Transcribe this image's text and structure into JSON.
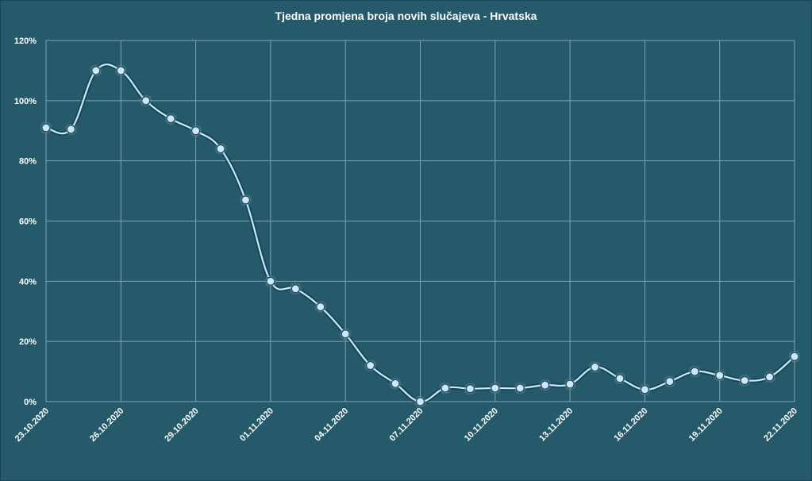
{
  "chart_data": {
    "type": "line",
    "title": "Tjedna promjena broja novih slučajeva - Hrvatska",
    "xlabel": "",
    "ylabel": "",
    "ylim": [
      0,
      120
    ],
    "yticks": [
      "0%",
      "20%",
      "40%",
      "60%",
      "80%",
      "100%",
      "120%"
    ],
    "grid": true,
    "x_tick_labels": [
      "23.10.2020",
      "26.10.2020",
      "29.10.2020",
      "01.11.2020",
      "04.11.2020",
      "07.11.2020",
      "10.11.2020",
      "13.11.2020",
      "16.11.2020",
      "19.11.2020",
      "22.11.2020"
    ],
    "x": [
      "23.10.2020",
      "24.10.2020",
      "25.10.2020",
      "26.10.2020",
      "27.10.2020",
      "28.10.2020",
      "29.10.2020",
      "30.10.2020",
      "31.10.2020",
      "01.11.2020",
      "02.11.2020",
      "03.11.2020",
      "04.11.2020",
      "05.11.2020",
      "06.11.2020",
      "07.11.2020",
      "08.11.2020",
      "09.11.2020",
      "10.11.2020",
      "11.11.2020",
      "12.11.2020",
      "13.11.2020",
      "14.11.2020",
      "15.11.2020",
      "16.11.2020",
      "17.11.2020",
      "18.11.2020",
      "19.11.2020",
      "20.11.2020",
      "21.11.2020",
      "22.11.2020"
    ],
    "series": [
      {
        "values": [
          91,
          90.5,
          110,
          110,
          100,
          94,
          90,
          84,
          67,
          40,
          37.5,
          31.5,
          22.5,
          12,
          6,
          0,
          4.5,
          4.3,
          4.5,
          4.5,
          5.5,
          5.8,
          11.5,
          7.7,
          4,
          6.7,
          10,
          8.7,
          7,
          8.2,
          15
        ]
      }
    ],
    "colors": {
      "background": "#245a6a",
      "line": "#cde8f7",
      "marker_fill": "#cde8f7",
      "marker_stroke": "#1d4f63",
      "grid": "#7fa4b0",
      "glow": "#0f3d55"
    }
  }
}
